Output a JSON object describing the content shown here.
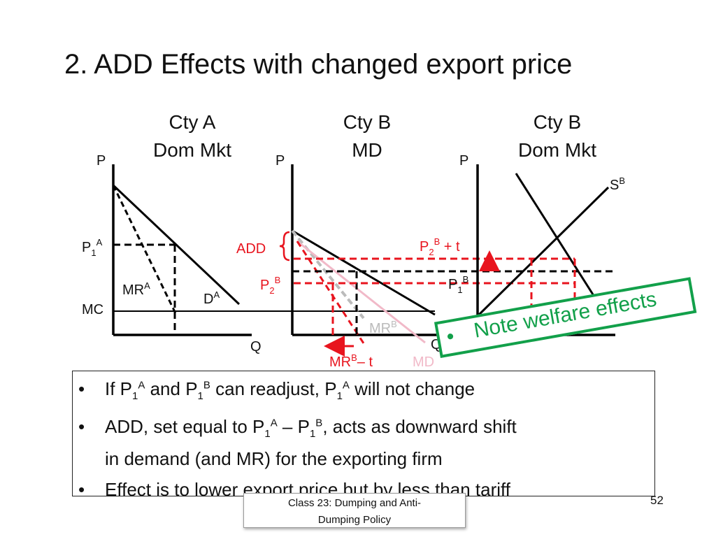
{
  "slide": {
    "title": "2.  ADD Effects with changed export price",
    "number": "52",
    "footer_line1": "Class 23:  Dumping and Anti-",
    "footer_line2": "Dumping Policy"
  },
  "panels": [
    {
      "line1": "Cty A",
      "line2": "Dom Mkt"
    },
    {
      "line1": "Cty B",
      "line2": "MD"
    },
    {
      "line1": "Cty B",
      "line2": "Dom Mkt"
    }
  ],
  "diagram": {
    "p_axis": "P",
    "q_axis": "Q",
    "p1": "P",
    "sub1": "1",
    "sub2": "2",
    "supA": "A",
    "supB": "B",
    "mc": "MC",
    "mr": "MR",
    "d": "D",
    "s": "S",
    "md": "MD",
    "add": "ADD",
    "plus_t": " + t",
    "minus_t": "– t"
  },
  "bullets": [
    "If P1A and P1B can readjust, P1A will not change",
    "ADD, set equal to P1A – P1B, acts as downward shift",
    "in demand (and MR) for the exporting firm",
    "Effect is to lower export price but by less than tariff"
  ],
  "note": {
    "text": "Note welfare effects"
  },
  "colors": {
    "red": "#e8141e",
    "green": "#12a04a",
    "pink": "#f1b9c8",
    "gray": "#bbbbbb"
  }
}
